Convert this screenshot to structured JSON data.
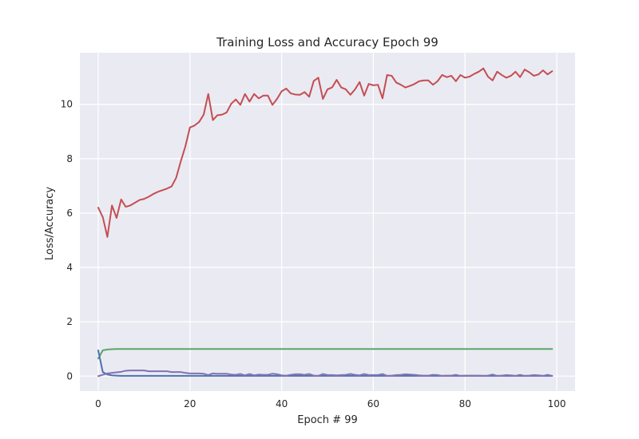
{
  "chart_data": {
    "type": "line",
    "title": "Training Loss and Accuracy Epoch 99",
    "xlabel": "Epoch # 99",
    "ylabel": "Loss/Accuracy",
    "xlim": [
      -4,
      104
    ],
    "ylim": [
      -0.55,
      11.9
    ],
    "x_ticks": [
      0,
      20,
      40,
      60,
      80,
      100
    ],
    "y_ticks": [
      0,
      2,
      4,
      6,
      8,
      10
    ],
    "grid": true,
    "legend": "none",
    "background": "#EAEAF2",
    "series": [
      {
        "color": "#C44E52",
        "values": [
          6.2,
          5.85,
          5.12,
          6.28,
          5.82,
          6.5,
          6.23,
          6.28,
          6.38,
          6.48,
          6.52,
          6.6,
          6.7,
          6.78,
          6.84,
          6.9,
          6.98,
          7.3,
          7.9,
          8.45,
          9.15,
          9.22,
          9.35,
          9.62,
          10.38,
          9.42,
          9.6,
          9.62,
          9.7,
          10.02,
          10.18,
          9.98,
          10.38,
          10.1,
          10.38,
          10.22,
          10.32,
          10.32,
          9.98,
          10.2,
          10.48,
          10.58,
          10.4,
          10.36,
          10.35,
          10.45,
          10.28,
          10.86,
          10.98,
          10.2,
          10.55,
          10.62,
          10.9,
          10.62,
          10.55,
          10.35,
          10.55,
          10.82,
          10.32,
          10.75,
          10.7,
          10.72,
          10.22,
          11.08,
          11.05,
          10.8,
          10.72,
          10.62,
          10.68,
          10.75,
          10.85,
          10.88,
          10.88,
          10.72,
          10.85,
          11.08,
          11.0,
          11.05,
          10.85,
          11.08,
          10.98,
          11.02,
          11.12,
          11.2,
          11.32,
          11.02,
          10.88,
          11.2,
          11.08,
          10.98,
          11.05,
          11.2,
          11.0,
          11.28,
          11.18,
          11.05,
          11.1,
          11.25,
          11.1,
          11.22
        ]
      },
      {
        "color": "#55A868",
        "values": [
          0.65,
          0.95,
          0.98,
          0.99,
          1.0,
          1.0,
          1.0,
          1.0,
          1.0,
          1.0,
          1.0,
          1.0,
          1.0,
          1.0,
          1.0,
          1.0,
          1.0,
          1.0,
          1.0,
          1.0,
          1.0,
          1.0,
          1.0,
          1.0,
          1.0,
          1.0,
          1.0,
          1.0,
          1.0,
          1.0,
          1.0,
          1.0,
          1.0,
          1.0,
          1.0,
          1.0,
          1.0,
          1.0,
          1.0,
          1.0,
          1.0,
          1.0,
          1.0,
          1.0,
          1.0,
          1.0,
          1.0,
          1.0,
          1.0,
          1.0,
          1.0,
          1.0,
          1.0,
          1.0,
          1.0,
          1.0,
          1.0,
          1.0,
          1.0,
          1.0,
          1.0,
          1.0,
          1.0,
          1.0,
          1.0,
          1.0,
          1.0,
          1.0,
          1.0,
          1.0,
          1.0,
          1.0,
          1.0,
          1.0,
          1.0,
          1.0,
          1.0,
          1.0,
          1.0,
          1.0,
          1.0,
          1.0,
          1.0,
          1.0,
          1.0,
          1.0,
          1.0,
          1.0,
          1.0,
          1.0,
          1.0,
          1.0,
          1.0,
          1.0,
          1.0,
          1.0,
          1.0,
          1.0,
          1.0,
          1.0
        ]
      },
      {
        "color": "#4C72B0",
        "values": [
          0.95,
          0.15,
          0.06,
          0.03,
          0.02,
          0.01,
          0.01,
          0.01,
          0.01,
          0.01,
          0.01,
          0.01,
          0.01,
          0.01,
          0.01,
          0.01,
          0.01,
          0.01,
          0.01,
          0.01,
          0.01,
          0.01,
          0.01,
          0.01,
          0.01,
          0.01,
          0.01,
          0.01,
          0.01,
          0.01,
          0.01,
          0.01,
          0.01,
          0.01,
          0.01,
          0.01,
          0.01,
          0.01,
          0.01,
          0.01,
          0.01,
          0.01,
          0.01,
          0.01,
          0.01,
          0.01,
          0.01,
          0.01,
          0.01,
          0.01,
          0.01,
          0.01,
          0.01,
          0.01,
          0.01,
          0.01,
          0.01,
          0.01,
          0.01,
          0.01,
          0.01,
          0.01,
          0.01,
          0.01,
          0.01,
          0.01,
          0.01,
          0.01,
          0.01,
          0.01,
          0.01,
          0.01,
          0.01,
          0.01,
          0.01,
          0.01,
          0.01,
          0.01,
          0.01,
          0.01,
          0.01,
          0.01,
          0.01,
          0.01,
          0.01,
          0.01,
          0.01,
          0.01,
          0.01,
          0.01,
          0.01,
          0.01,
          0.01,
          0.01,
          0.01,
          0.01,
          0.01,
          0.01,
          0.01,
          0.01
        ]
      },
      {
        "color": "#8172B2",
        "values": [
          0.0,
          0.05,
          0.1,
          0.12,
          0.14,
          0.16,
          0.2,
          0.21,
          0.21,
          0.21,
          0.21,
          0.18,
          0.18,
          0.18,
          0.18,
          0.18,
          0.15,
          0.15,
          0.15,
          0.12,
          0.1,
          0.1,
          0.1,
          0.09,
          0.04,
          0.1,
          0.09,
          0.09,
          0.09,
          0.06,
          0.05,
          0.08,
          0.03,
          0.08,
          0.03,
          0.06,
          0.05,
          0.05,
          0.09,
          0.07,
          0.03,
          0.02,
          0.05,
          0.07,
          0.07,
          0.05,
          0.08,
          0.02,
          0.01,
          0.08,
          0.04,
          0.04,
          0.03,
          0.04,
          0.05,
          0.08,
          0.05,
          0.03,
          0.08,
          0.04,
          0.04,
          0.04,
          0.08,
          0.01,
          0.02,
          0.04,
          0.05,
          0.07,
          0.06,
          0.05,
          0.03,
          0.02,
          0.02,
          0.05,
          0.04,
          0.01,
          0.02,
          0.02,
          0.05,
          0.01,
          0.02,
          0.02,
          0.02,
          0.02,
          0.01,
          0.02,
          0.06,
          0.01,
          0.02,
          0.04,
          0.03,
          0.01,
          0.05,
          0.01,
          0.02,
          0.04,
          0.03,
          0.01,
          0.05,
          0.01
        ]
      }
    ]
  }
}
